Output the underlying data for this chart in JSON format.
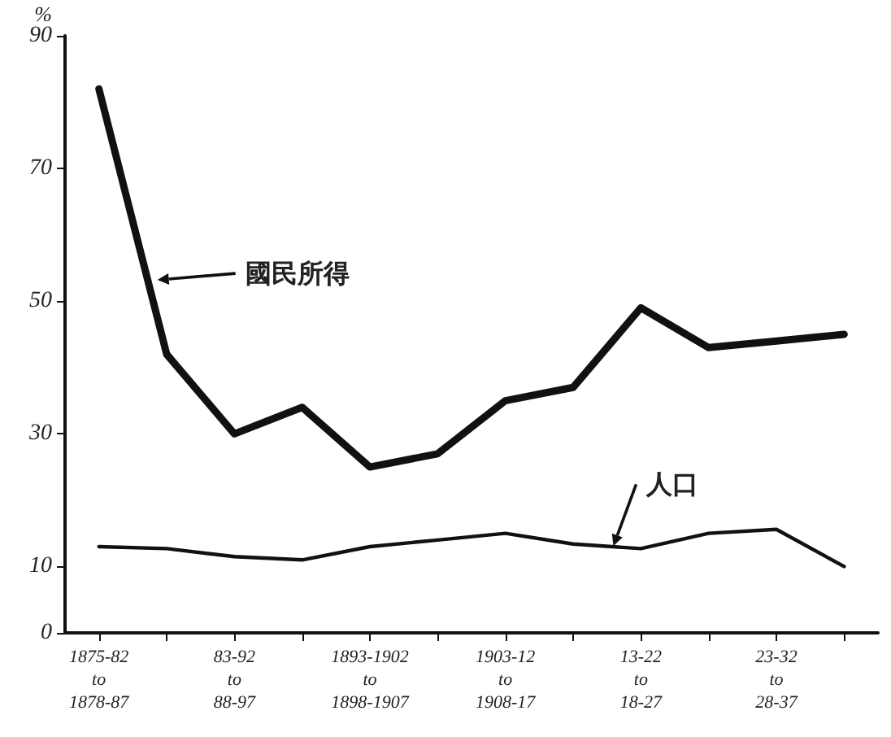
{
  "chart_data": {
    "type": "line",
    "ylabel": "%",
    "categories": [
      "1875-82\nto\n1878-87",
      null,
      "83-92\nto\n88-97",
      null,
      "1893-1902\nto\n1898-1907",
      null,
      "1903-12\nto\n1908-17",
      null,
      "13-22\nto\n18-27",
      null,
      "23-32\nto\n28-37",
      null
    ],
    "series": [
      {
        "name": "國民所得",
        "color": "#111111",
        "values": [
          82,
          42,
          30,
          34,
          25,
          27,
          35,
          37,
          49,
          43,
          44,
          45
        ]
      },
      {
        "name": "人口",
        "color": "#111111",
        "values": [
          13,
          12.7,
          11.5,
          11,
          13,
          14,
          15,
          13.4,
          12.7,
          15,
          15.6,
          10
        ]
      }
    ],
    "ylim": [
      0,
      90
    ],
    "yticks": [
      0,
      10,
      30,
      50,
      70,
      90
    ],
    "grid": false,
    "legend": "top left",
    "marker": "none",
    "line_style": "solid"
  }
}
